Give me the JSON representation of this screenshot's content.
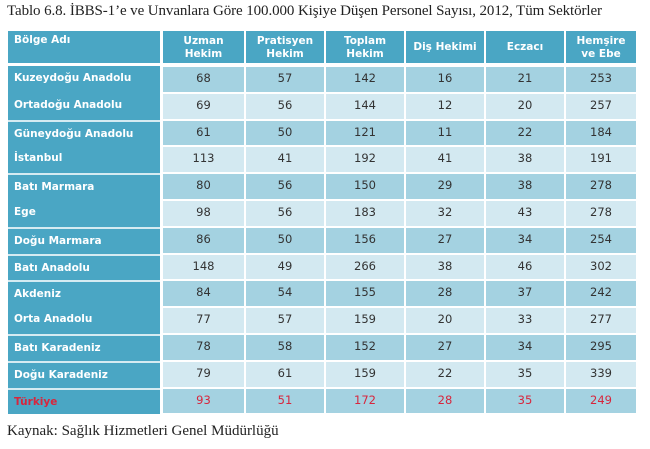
{
  "caption": "Tablo 6.8. İBBS-1’e ve Unvanlara Göre 100.000 Kişiye Düşen Personel Sayısı, 2012, Tüm Sektörler",
  "source": "Kaynak: Sağlık Hizmetleri Genel Müdürlüğü",
  "colors": {
    "header_bg": "#4aa6c4",
    "row_dark": "#a4d2e1",
    "row_light": "#d3e9f1",
    "total_text": "#d7263d",
    "header_text": "#ffffff"
  },
  "table": {
    "headers": [
      "Bölge Adı",
      "Uzman Hekim",
      "Pratisyen Hekim",
      "Toplam Hekim",
      "Diş Hekimi",
      "Eczacı",
      "Hemşire ve Ebe"
    ],
    "header_lines": [
      [
        "Bölge Adı"
      ],
      [
        "Uzman",
        "Hekim"
      ],
      [
        "Pratisyen",
        "Hekim"
      ],
      [
        "Toplam",
        "Hekim"
      ],
      [
        "Diş Hekimi"
      ],
      [
        "Eczacı"
      ],
      [
        "Hemşire",
        "ve Ebe"
      ]
    ],
    "rows": [
      {
        "region": "Kuzeydoğu Anadolu",
        "values": [
          "68",
          "57",
          "142",
          "16",
          "21",
          "253"
        ]
      },
      {
        "region": "Ortadoğu Anadolu",
        "values": [
          "69",
          "56",
          "144",
          "12",
          "20",
          "257"
        ]
      },
      {
        "region": "Güneydoğu Anadolu",
        "values": [
          "61",
          "50",
          "121",
          "11",
          "22",
          "184"
        ]
      },
      {
        "region": "İstanbul",
        "values": [
          "113",
          "41",
          "192",
          "41",
          "38",
          "191"
        ]
      },
      {
        "region": "Batı Marmara",
        "values": [
          "80",
          "56",
          "150",
          "29",
          "38",
          "278"
        ]
      },
      {
        "region": "Ege",
        "values": [
          "98",
          "56",
          "183",
          "32",
          "43",
          "278"
        ]
      },
      {
        "region": "Doğu Marmara",
        "values": [
          "86",
          "50",
          "156",
          "27",
          "34",
          "254"
        ]
      },
      {
        "region": "Batı Anadolu",
        "values": [
          "148",
          "49",
          "266",
          "38",
          "46",
          "302"
        ]
      },
      {
        "region": "Akdeniz",
        "values": [
          "84",
          "54",
          "155",
          "28",
          "37",
          "242"
        ]
      },
      {
        "region": "Orta Anadolu",
        "values": [
          "77",
          "57",
          "159",
          "20",
          "33",
          "277"
        ]
      },
      {
        "region": "Batı Karadeniz",
        "values": [
          "78",
          "58",
          "152",
          "27",
          "34",
          "295"
        ]
      },
      {
        "region": "Doğu Karadeniz",
        "values": [
          "79",
          "61",
          "159",
          "22",
          "35",
          "339"
        ]
      },
      {
        "region": "Türkiye",
        "values": [
          "93",
          "51",
          "172",
          "28",
          "35",
          "249"
        ],
        "is_total": true
      }
    ]
  }
}
